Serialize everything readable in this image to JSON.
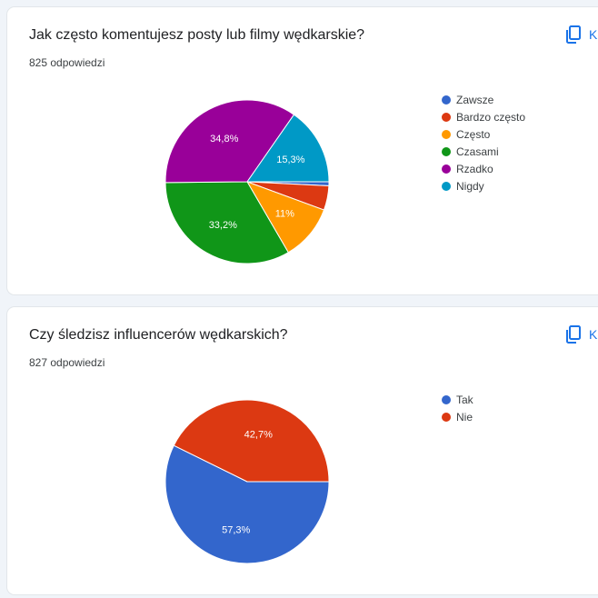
{
  "colors": {
    "blue": "#3366cc",
    "red": "#dc3912",
    "orange": "#ff9900",
    "green": "#109618",
    "purple": "#990099",
    "teal": "#0099c6",
    "accent": "#1a73e8"
  },
  "questions": [
    {
      "title": "Jak często komentujesz posty lub filmy wędkarskie?",
      "count": "825 odpowiedzi",
      "copy_label": "Kopiuj",
      "copy_icon": "copy-icon"
    },
    {
      "title": "Czy śledzisz influencerów wędkarskich?",
      "count": "827 odpowiedzi",
      "copy_label": "Kopiuj",
      "copy_icon": "copy-icon"
    }
  ],
  "chart_data": [
    {
      "type": "pie",
      "categories": [
        "Zawsze",
        "Bardzo często",
        "Często",
        "Czasami",
        "Rzadko",
        "Nigdy"
      ],
      "values": [
        0.8,
        4.8,
        11,
        33.2,
        34.8,
        15.3
      ],
      "value_labels": [
        "",
        "",
        "11%",
        "33,2%",
        "34,8%",
        "15,3%"
      ],
      "colors": [
        "#3366cc",
        "#dc3912",
        "#ff9900",
        "#109618",
        "#990099",
        "#0099c6"
      ],
      "legend": "right"
    },
    {
      "type": "pie",
      "categories": [
        "Tak",
        "Nie"
      ],
      "values": [
        57.3,
        42.7
      ],
      "value_labels": [
        "57,3%",
        "42,7%"
      ],
      "colors": [
        "#3366cc",
        "#dc3912"
      ],
      "legend": "right"
    }
  ]
}
